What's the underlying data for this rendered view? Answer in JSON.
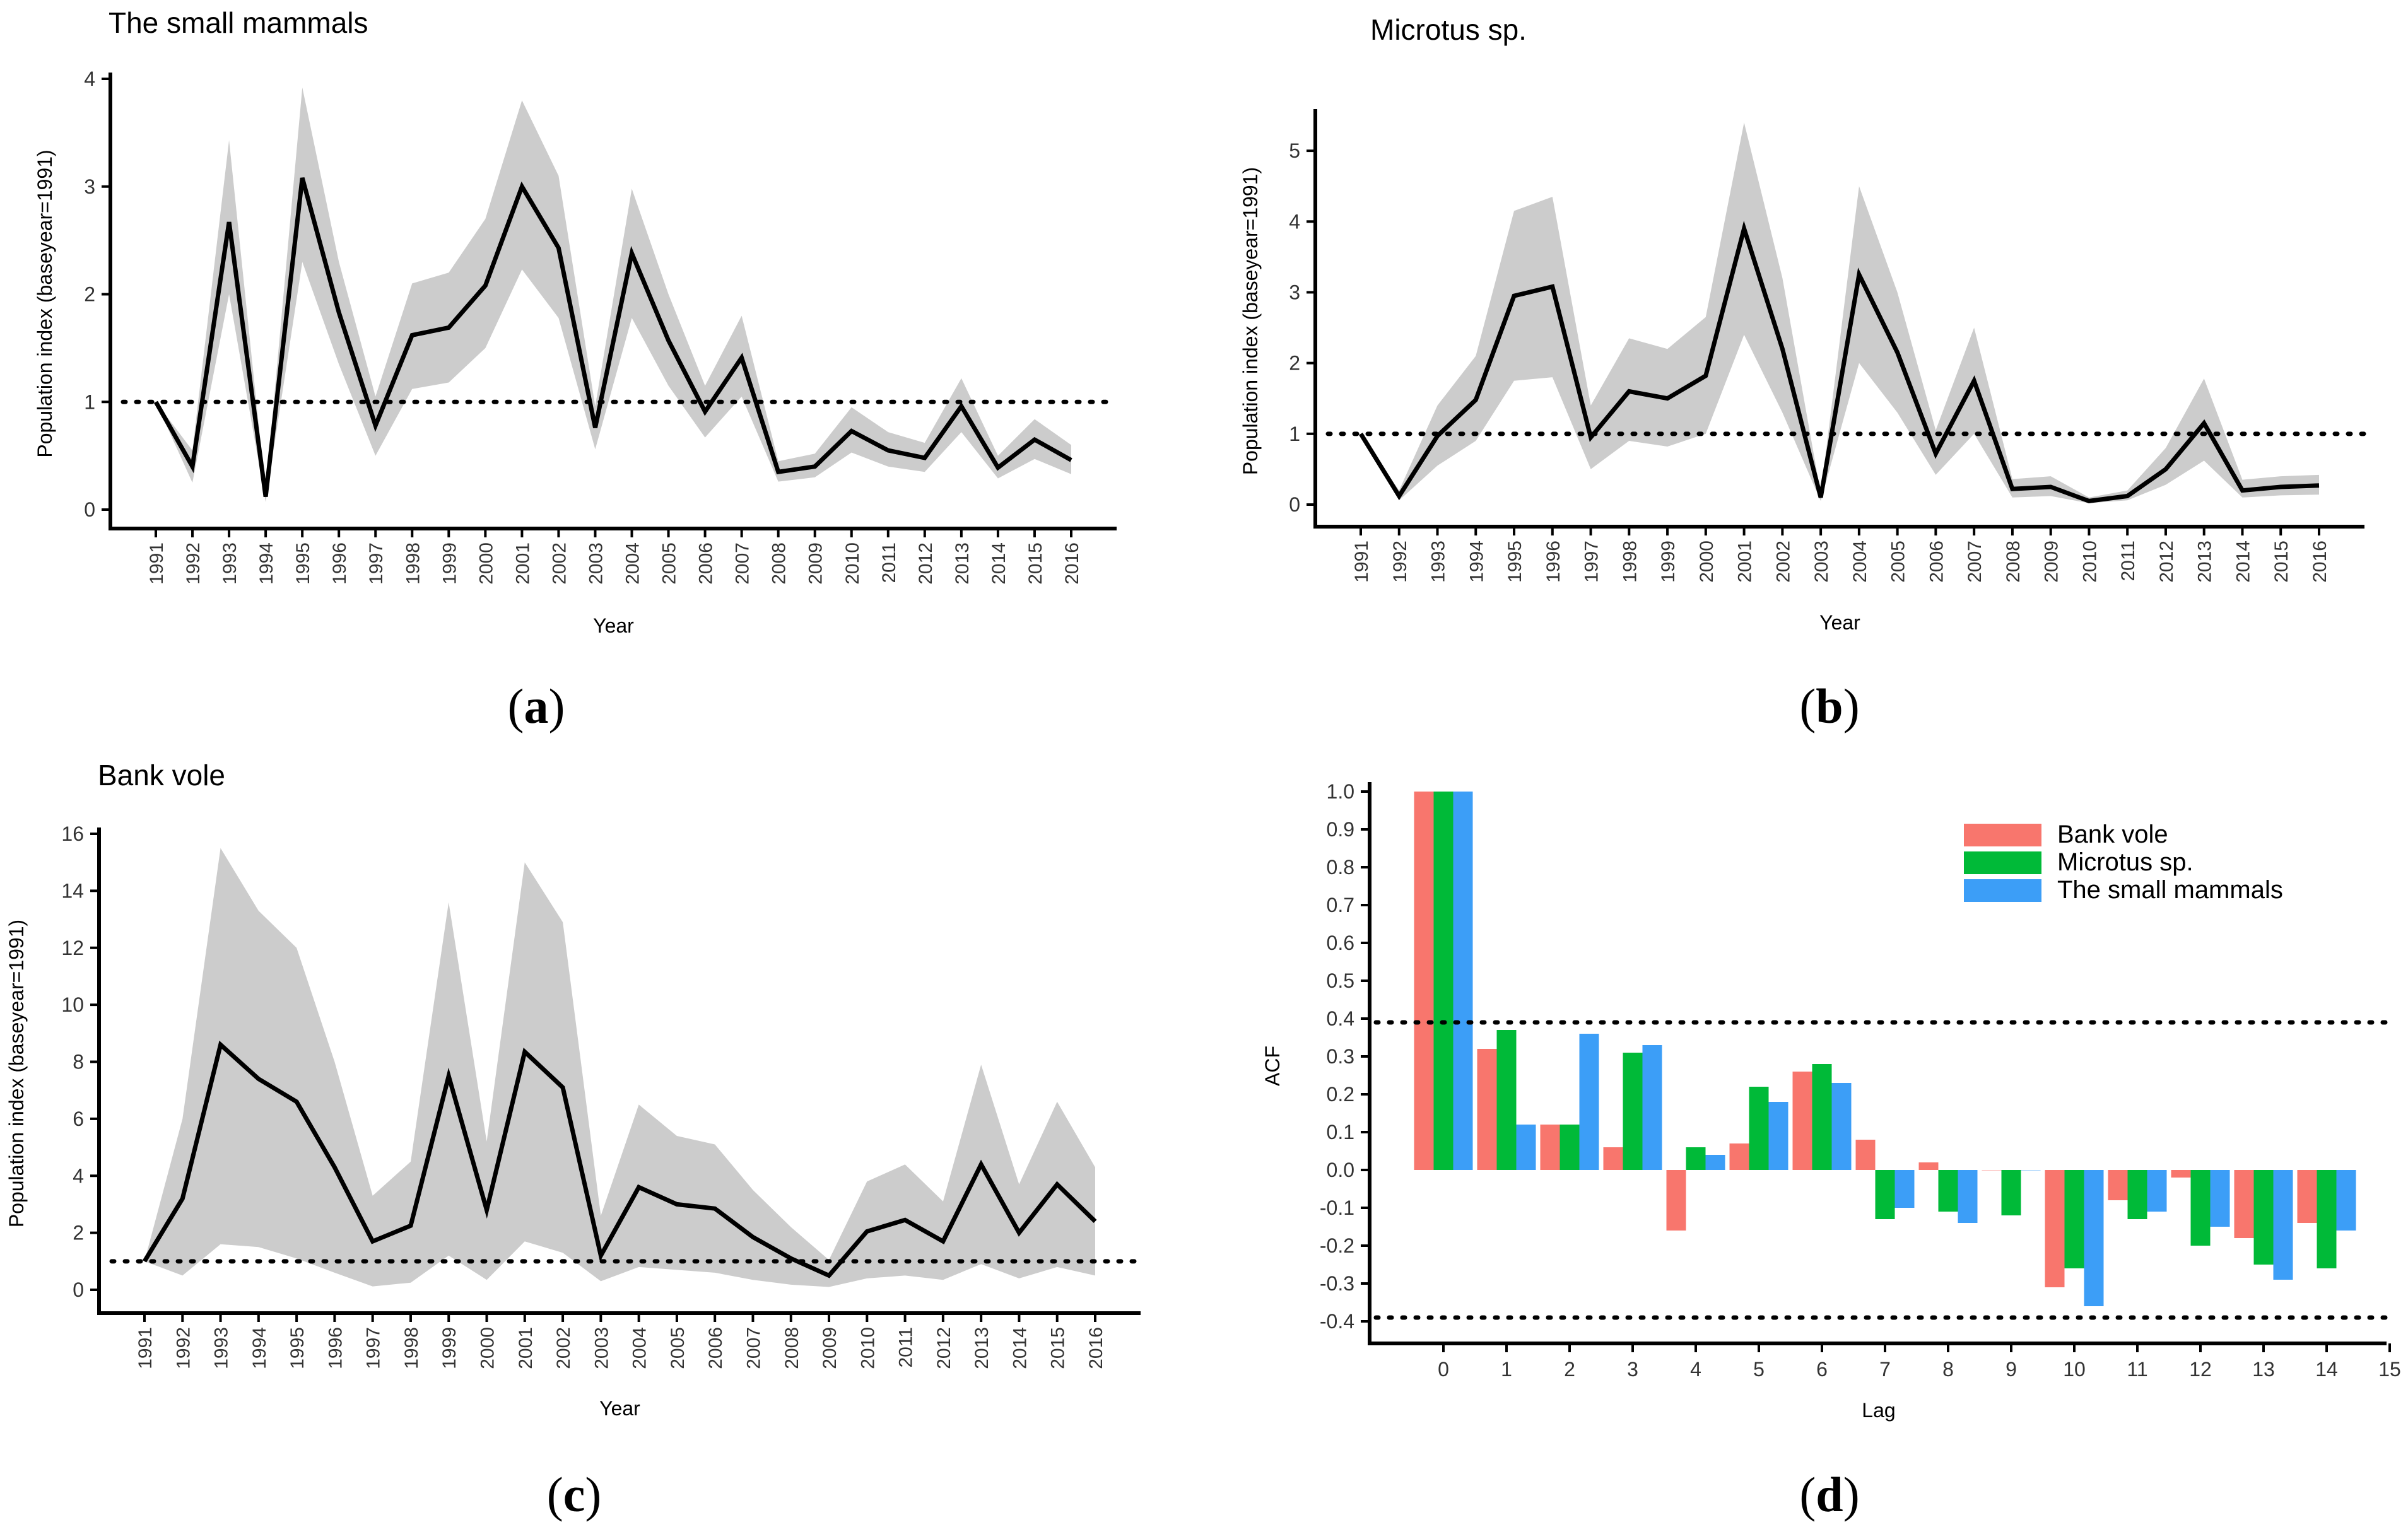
{
  "chart_data": [
    {
      "type": "line",
      "title": "The small mammals",
      "xlabel": "Year",
      "ylabel": "Population index (baseyear=1991)",
      "panel_label": "a",
      "x": [
        "1991",
        "1992",
        "1993",
        "1994",
        "1995",
        "1996",
        "1997",
        "1998",
        "1999",
        "2000",
        "2001",
        "2002",
        "2003",
        "2004",
        "2005",
        "2006",
        "2007",
        "2008",
        "2009",
        "2010",
        "2011",
        "2012",
        "2013",
        "2014",
        "2015",
        "2016"
      ],
      "values": [
        1.0,
        0.4,
        2.67,
        0.12,
        3.08,
        1.83,
        0.78,
        1.62,
        1.69,
        2.08,
        3.0,
        2.43,
        0.76,
        2.38,
        1.57,
        0.91,
        1.41,
        0.35,
        0.4,
        0.73,
        0.55,
        0.48,
        0.96,
        0.39,
        0.65,
        0.46
      ],
      "upper": [
        1.0,
        0.55,
        3.43,
        0.17,
        3.92,
        2.3,
        1.05,
        2.1,
        2.2,
        2.7,
        3.8,
        3.1,
        0.96,
        2.98,
        2.0,
        1.15,
        1.8,
        0.45,
        0.52,
        0.95,
        0.72,
        0.62,
        1.22,
        0.5,
        0.84,
        0.6
      ],
      "lower": [
        1.0,
        0.25,
        2.0,
        0.07,
        2.3,
        1.35,
        0.5,
        1.12,
        1.18,
        1.5,
        2.23,
        1.78,
        0.56,
        1.78,
        1.15,
        0.67,
        1.05,
        0.26,
        0.3,
        0.53,
        0.4,
        0.35,
        0.72,
        0.29,
        0.47,
        0.33
      ],
      "reference_line": 1,
      "ylim": [
        0,
        4
      ],
      "yticks": [
        0,
        1,
        2,
        3,
        4
      ]
    },
    {
      "type": "line",
      "title": "Microtus sp.",
      "xlabel": "Year",
      "ylabel": "Population index (baseyear=1991)",
      "panel_label": "b",
      "x": [
        "1991",
        "1992",
        "1993",
        "1994",
        "1995",
        "1996",
        "1997",
        "1998",
        "1999",
        "2000",
        "2001",
        "2002",
        "2003",
        "2004",
        "2005",
        "2006",
        "2007",
        "2008",
        "2009",
        "2010",
        "2011",
        "2012",
        "2013",
        "2014",
        "2015",
        "2016"
      ],
      "values": [
        1.0,
        0.12,
        0.97,
        1.48,
        2.95,
        3.08,
        0.95,
        1.6,
        1.5,
        1.82,
        3.9,
        2.2,
        0.1,
        3.25,
        2.15,
        0.72,
        1.75,
        0.22,
        0.25,
        0.05,
        0.12,
        0.5,
        1.15,
        0.2,
        0.25,
        0.27
      ],
      "upper": [
        1.0,
        0.2,
        1.4,
        2.1,
        4.15,
        4.35,
        1.4,
        2.35,
        2.2,
        2.65,
        5.4,
        3.2,
        0.16,
        4.5,
        3.0,
        1.05,
        2.5,
        0.36,
        0.4,
        0.1,
        0.2,
        0.8,
        1.78,
        0.35,
        0.4,
        0.42
      ],
      "lower": [
        1.0,
        0.06,
        0.55,
        0.9,
        1.75,
        1.8,
        0.5,
        0.9,
        0.82,
        1.0,
        2.4,
        1.3,
        0.05,
        2.0,
        1.3,
        0.42,
        1.0,
        0.1,
        0.12,
        0.02,
        0.06,
        0.28,
        0.62,
        0.1,
        0.13,
        0.14
      ],
      "reference_line": 1,
      "ylim": [
        0,
        5.5
      ],
      "yticks": [
        0,
        1,
        2,
        3,
        4,
        5
      ]
    },
    {
      "type": "line",
      "title": "Bank vole",
      "xlabel": "Year",
      "ylabel": "Population index (baseyear=1991)",
      "panel_label": "c",
      "x": [
        "1991",
        "1992",
        "1993",
        "1994",
        "1995",
        "1996",
        "1997",
        "1998",
        "1999",
        "2000",
        "2001",
        "2002",
        "2003",
        "2004",
        "2005",
        "2006",
        "2007",
        "2008",
        "2009",
        "2010",
        "2011",
        "2012",
        "2013",
        "2014",
        "2015",
        "2016"
      ],
      "values": [
        1.0,
        3.2,
        8.6,
        7.4,
        6.6,
        4.3,
        1.7,
        2.25,
        7.5,
        2.8,
        8.35,
        7.1,
        1.2,
        3.6,
        3.0,
        2.85,
        1.85,
        1.1,
        0.5,
        2.05,
        2.45,
        1.7,
        4.4,
        2.0,
        3.7,
        2.4
      ],
      "upper": [
        1.0,
        6.0,
        15.5,
        13.3,
        12.0,
        8.0,
        3.3,
        4.5,
        13.6,
        5.2,
        15.0,
        12.9,
        2.6,
        6.5,
        5.4,
        5.1,
        3.5,
        2.2,
        1.05,
        3.8,
        4.4,
        3.1,
        7.9,
        3.7,
        6.6,
        4.3
      ],
      "lower": [
        1.0,
        0.5,
        1.6,
        1.5,
        1.1,
        0.6,
        0.12,
        0.25,
        1.2,
        0.35,
        1.7,
        1.3,
        0.3,
        0.8,
        0.7,
        0.6,
        0.35,
        0.18,
        0.1,
        0.4,
        0.5,
        0.35,
        0.9,
        0.4,
        0.8,
        0.5
      ],
      "reference_line": 1,
      "ylim": [
        0,
        16
      ],
      "yticks": [
        0,
        2,
        4,
        6,
        8,
        10,
        12,
        14,
        16
      ]
    },
    {
      "type": "bar",
      "title": "",
      "xlabel": "Lag",
      "ylabel": "ACF",
      "panel_label": "d",
      "categories": [
        0,
        1,
        2,
        3,
        4,
        5,
        6,
        7,
        8,
        9,
        10,
        11,
        12,
        13,
        14
      ],
      "xticks": [
        0,
        1,
        2,
        3,
        4,
        5,
        6,
        7,
        8,
        9,
        10,
        11,
        12,
        13,
        14,
        15
      ],
      "series": [
        {
          "name": "Bank vole",
          "color": "#F8766D",
          "values": [
            1.0,
            0.32,
            0.12,
            0.06,
            -0.16,
            0.07,
            0.26,
            0.08,
            0.02,
            0.0,
            -0.31,
            -0.08,
            -0.02,
            -0.18,
            -0.14
          ]
        },
        {
          "name": "Microtus sp.",
          "color": "#00BA38",
          "values": [
            1.0,
            0.37,
            0.12,
            0.31,
            0.06,
            0.22,
            0.28,
            -0.13,
            -0.11,
            -0.12,
            -0.26,
            -0.13,
            -0.2,
            -0.25,
            -0.26
          ]
        },
        {
          "name": "The small mammals",
          "color": "#3C9EF7",
          "values": [
            1.0,
            0.12,
            0.36,
            0.33,
            0.04,
            0.18,
            0.23,
            -0.1,
            -0.14,
            0.0,
            -0.36,
            -0.11,
            -0.15,
            -0.29,
            -0.16
          ]
        }
      ],
      "confidence_bounds": [
        0.39,
        -0.39
      ],
      "ylim": [
        -0.45,
        1.05
      ],
      "yticks": [
        "1.0",
        "0.9",
        "0.8",
        "0.7",
        "0.6",
        "0.5",
        "0.4",
        "0.3",
        "0.2",
        "0.1",
        "0.0",
        "-0.1",
        "-0.2",
        "-0.3",
        "-0.4"
      ],
      "legend": "top-right"
    }
  ]
}
